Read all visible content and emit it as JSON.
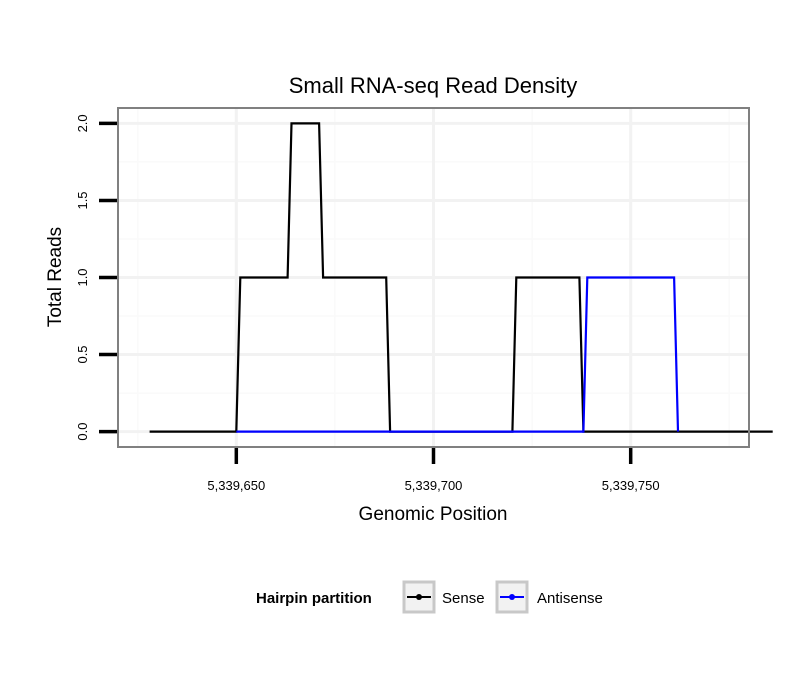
{
  "chart_data": {
    "type": "line",
    "title": "Small RNA-seq Read Density",
    "xlabel": "Genomic Position",
    "ylabel": "Total Reads",
    "xlim": [
      5339620,
      5339780
    ],
    "ylim": [
      -0.1,
      2.1
    ],
    "xticks": [
      5339650,
      5339700,
      5339750
    ],
    "xtick_labels": [
      "5,339,650",
      "5,339,700",
      "5,339,750"
    ],
    "yticks": [
      0,
      0.5,
      1,
      1.5,
      2
    ],
    "ytick_labels": [
      "0.0",
      "0.5",
      "1.0",
      "1.5",
      "2.0"
    ],
    "grid": true,
    "legend": {
      "title": "Hairpin partition",
      "position": "bottom",
      "entries": [
        {
          "name": "Sense",
          "color": "#000000"
        },
        {
          "name": "Antisense",
          "color": "#0000ff"
        }
      ]
    },
    "series": [
      {
        "name": "Sense",
        "color": "#000000",
        "x": [
          5339628,
          5339650,
          5339651,
          5339663,
          5339664,
          5339671,
          5339672,
          5339688,
          5339689,
          5339720,
          5339721,
          5339737,
          5339738,
          5339786
        ],
        "y": [
          0,
          0,
          1,
          1,
          2,
          2,
          1,
          1,
          0,
          0,
          1,
          1,
          0,
          0
        ]
      },
      {
        "name": "Antisense",
        "color": "#0000ff",
        "x": [
          5339650,
          5339738,
          5339739,
          5339761,
          5339762
        ],
        "y": [
          0,
          0,
          1,
          1,
          0
        ]
      }
    ]
  }
}
